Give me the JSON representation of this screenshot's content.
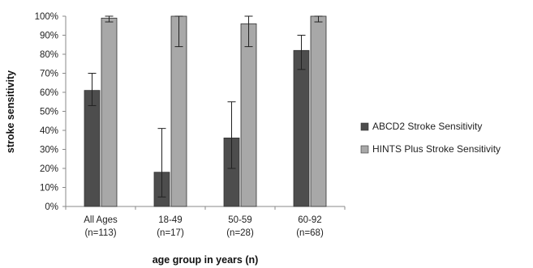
{
  "chart_data": {
    "type": "bar",
    "title": "",
    "ylabel": "stroke sensitivity",
    "xlabel": "age group in years (n)",
    "ylim": [
      0,
      100
    ],
    "yticks": [
      "0%",
      "10%",
      "20%",
      "30%",
      "40%",
      "50%",
      "60%",
      "70%",
      "80%",
      "90%",
      "100%"
    ],
    "categories": [
      [
        "All Ages",
        "(n=113)"
      ],
      [
        "18-49",
        "(n=17)"
      ],
      [
        "50-59",
        "(n=28)"
      ],
      [
        "60-92",
        "(n=68)"
      ]
    ],
    "series": [
      {
        "name": "ABCD2 Stroke Sensitivity",
        "color": "#4d4d4d",
        "values": [
          61,
          18,
          36,
          82
        ],
        "error_low": [
          53,
          5,
          20,
          72
        ],
        "error_high": [
          70,
          41,
          55,
          90
        ]
      },
      {
        "name": "HINTS Plus Stroke Sensitivity",
        "color": "#a8a8a8",
        "values": [
          99,
          100,
          96,
          100
        ],
        "error_low": [
          97,
          84,
          84,
          97
        ],
        "error_high": [
          100,
          100,
          100,
          100
        ]
      }
    ],
    "grid": false,
    "legend_position": "right"
  }
}
